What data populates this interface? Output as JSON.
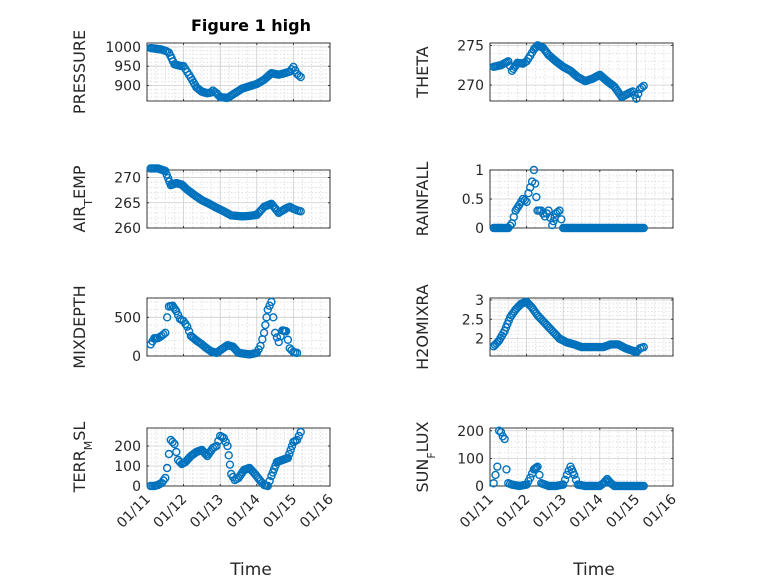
{
  "colors": {
    "series": "#0072BD",
    "axis": "#262626",
    "grid": "#d0d0d0"
  },
  "chart_data": {
    "type": "scatter",
    "title": "Figure 1 high",
    "x_axis": {
      "label": "Time",
      "tick_labels": [
        "01/11",
        "01/12",
        "01/13",
        "01/14",
        "01/15",
        "01/16"
      ],
      "xlim_days": [
        11,
        16
      ]
    },
    "panels": [
      {
        "ylabel": "PRESSURE",
        "ylabel_sub": "",
        "ylim": [
          860,
          1010
        ],
        "yticks": [
          900,
          950,
          1000
        ],
        "yticklabels": [
          "900",
          "950",
          "1000"
        ],
        "x": [
          11.1,
          11.25,
          11.4,
          11.5,
          11.6,
          11.75,
          11.9,
          12.0,
          12.1,
          12.2,
          12.35,
          12.5,
          12.65,
          12.75,
          12.8,
          12.9,
          13.0,
          13.2,
          13.4,
          13.6,
          13.8,
          14.0,
          14.2,
          14.4,
          14.6,
          14.8,
          14.9,
          15.0,
          15.1,
          15.2
        ],
        "y": [
          997,
          995,
          993,
          990,
          985,
          955,
          951,
          950,
          935,
          920,
          895,
          884,
          880,
          882,
          887,
          880,
          870,
          868,
          880,
          892,
          898,
          904,
          915,
          932,
          928,
          933,
          936,
          948,
          930,
          922
        ]
      },
      {
        "ylabel": "THETA",
        "ylabel_sub": "",
        "ylim": [
          268,
          275.3
        ],
        "yticks": [
          270,
          275
        ],
        "yticklabels": [
          "270",
          "275"
        ],
        "x": [
          11.1,
          11.3,
          11.5,
          11.6,
          11.75,
          11.9,
          12.0,
          12.1,
          12.2,
          12.3,
          12.45,
          12.6,
          12.8,
          13.0,
          13.2,
          13.4,
          13.6,
          13.8,
          14.0,
          14.2,
          14.4,
          14.6,
          14.8,
          14.9,
          15.0,
          15.1,
          15.2
        ],
        "y": [
          272.3,
          272.5,
          273.0,
          271.8,
          272.8,
          272.7,
          273.0,
          273.7,
          274.5,
          275.0,
          274.7,
          273.8,
          273.0,
          272.3,
          271.8,
          271.0,
          270.5,
          270.8,
          271.3,
          270.5,
          269.8,
          268.5,
          269.0,
          269.2,
          268.3,
          269.5,
          269.9
        ]
      },
      {
        "ylabel": "AIR",
        "ylabel_sub": "T",
        "ylabel_rest": "EMP",
        "ylim": [
          260,
          271.5
        ],
        "yticks": [
          260,
          265,
          270
        ],
        "yticklabels": [
          "260",
          "265",
          "270"
        ],
        "x": [
          11.1,
          11.3,
          11.5,
          11.65,
          11.8,
          11.95,
          12.1,
          12.3,
          12.5,
          12.7,
          12.9,
          13.1,
          13.3,
          13.6,
          13.8,
          14.0,
          14.2,
          14.4,
          14.6,
          14.8,
          14.9,
          15.0,
          15.1,
          15.2
        ],
        "y": [
          271.8,
          271.8,
          271.3,
          268.5,
          268.9,
          268.6,
          267.6,
          266.5,
          265.5,
          264.8,
          264.0,
          263.3,
          262.5,
          262.3,
          262.4,
          262.6,
          264.2,
          264.8,
          263.0,
          263.9,
          264.2,
          263.8,
          263.5,
          263.3
        ]
      },
      {
        "ylabel": "RAINFALL",
        "ylabel_sub": "",
        "ylim": [
          0,
          1.0
        ],
        "yticks": [
          0,
          0.5,
          1
        ],
        "yticklabels": [
          "0",
          "0.5",
          "1"
        ],
        "x": [
          11.1,
          11.3,
          11.5,
          11.6,
          11.7,
          11.8,
          11.9,
          12.0,
          12.05,
          12.1,
          12.15,
          12.2,
          12.3,
          12.4,
          12.5,
          12.6,
          12.7,
          12.8,
          12.9,
          13.0,
          13.2,
          13.5,
          14.0,
          14.5,
          15.0,
          15.2
        ],
        "y": [
          0,
          0,
          0,
          0.08,
          0.3,
          0.4,
          0.5,
          0.45,
          0.6,
          0.7,
          0.8,
          1.0,
          0.3,
          0.3,
          0.2,
          0.3,
          0.05,
          0.25,
          0.3,
          0,
          0,
          0,
          0,
          0,
          0,
          0
        ]
      },
      {
        "ylabel": "MIXDEPTH",
        "ylabel_sub": "",
        "ylim": [
          0,
          750
        ],
        "yticks": [
          0,
          500
        ],
        "yticklabels": [
          "0",
          "500"
        ],
        "x": [
          11.1,
          11.2,
          11.3,
          11.4,
          11.5,
          11.55,
          11.6,
          11.7,
          11.8,
          11.9,
          12.0,
          12.1,
          12.2,
          12.35,
          12.5,
          12.6,
          12.75,
          12.9,
          13.05,
          13.2,
          13.35,
          13.5,
          13.65,
          13.8,
          14.0,
          14.1,
          14.2,
          14.3,
          14.4,
          14.5,
          14.6,
          14.7,
          14.8,
          14.9,
          15.0,
          15.1
        ],
        "y": [
          150,
          230,
          230,
          260,
          300,
          500,
          640,
          650,
          580,
          480,
          450,
          380,
          260,
          200,
          150,
          110,
          60,
          40,
          90,
          140,
          120,
          40,
          30,
          20,
          40,
          130,
          300,
          600,
          700,
          300,
          180,
          330,
          320,
          100,
          50,
          40
        ]
      },
      {
        "ylabel": "H2OMIXRA",
        "ylabel_sub": "",
        "ylim": [
          1.55,
          3.05
        ],
        "yticks": [
          2,
          2.5,
          3
        ],
        "yticklabels": [
          "2",
          "2.5",
          "3"
        ],
        "x": [
          11.1,
          11.25,
          11.4,
          11.55,
          11.7,
          11.85,
          12.0,
          12.15,
          12.3,
          12.5,
          12.7,
          12.9,
          13.1,
          13.3,
          13.5,
          13.7,
          13.9,
          14.1,
          14.3,
          14.5,
          14.7,
          14.85,
          15.0,
          15.1,
          15.2
        ],
        "y": [
          1.8,
          1.95,
          2.2,
          2.55,
          2.75,
          2.9,
          2.95,
          2.8,
          2.6,
          2.4,
          2.2,
          2.0,
          1.9,
          1.85,
          1.78,
          1.78,
          1.78,
          1.78,
          1.85,
          1.85,
          1.75,
          1.7,
          1.65,
          1.75,
          1.78
        ]
      },
      {
        "ylabel": "TERR",
        "ylabel_sub": "M",
        "ylabel_rest": "SL",
        "ylim": [
          0,
          290
        ],
        "yticks": [
          0,
          100,
          200
        ],
        "yticklabels": [
          "0",
          "100",
          "200"
        ],
        "x": [
          11.1,
          11.2,
          11.3,
          11.4,
          11.5,
          11.55,
          11.6,
          11.65,
          11.75,
          11.85,
          11.95,
          12.05,
          12.2,
          12.35,
          12.5,
          12.65,
          12.8,
          12.9,
          13.0,
          13.1,
          13.2,
          13.3,
          13.4,
          13.5,
          13.65,
          13.8,
          13.95,
          14.1,
          14.2,
          14.3,
          14.4,
          14.55,
          14.7,
          14.85,
          15.0,
          15.1,
          15.2
        ],
        "y": [
          0,
          0,
          5,
          15,
          40,
          90,
          160,
          230,
          210,
          130,
          110,
          120,
          150,
          170,
          180,
          150,
          190,
          200,
          250,
          240,
          200,
          60,
          30,
          40,
          80,
          90,
          60,
          25,
          5,
          0,
          50,
          120,
          130,
          140,
          220,
          230,
          270
        ]
      },
      {
        "ylabel": "SUN",
        "ylabel_sub": "F",
        "ylabel_rest": "LUX",
        "ylim": [
          0,
          210
        ],
        "yticks": [
          0,
          100,
          200
        ],
        "yticklabels": [
          "0",
          "100",
          "200"
        ],
        "x": [
          11.1,
          11.2,
          11.25,
          11.3,
          11.35,
          11.4,
          11.45,
          11.5,
          11.6,
          11.8,
          12.0,
          12.1,
          12.2,
          12.3,
          12.4,
          12.6,
          12.8,
          13.0,
          13.1,
          13.2,
          13.3,
          13.4,
          13.6,
          13.8,
          14.0,
          14.1,
          14.2,
          14.3,
          14.4,
          14.6,
          14.8,
          15.0,
          15.2
        ],
        "y": [
          10,
          70,
          200,
          195,
          180,
          170,
          60,
          10,
          5,
          0,
          5,
          30,
          60,
          70,
          10,
          0,
          0,
          5,
          40,
          70,
          40,
          5,
          0,
          0,
          0,
          10,
          25,
          10,
          0,
          0,
          0,
          0,
          0
        ]
      }
    ]
  }
}
